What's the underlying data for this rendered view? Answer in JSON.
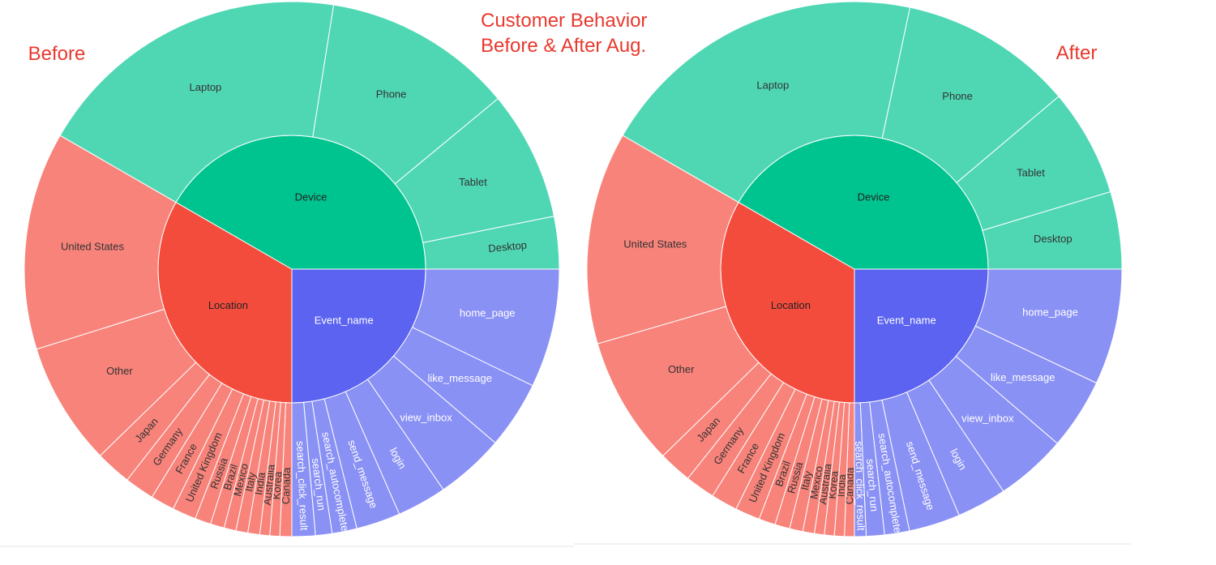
{
  "figure": {
    "title_line1": "Customer Behavior",
    "title_line2": "Before & After Aug."
  },
  "colors": {
    "Event_name": "#5b63f0",
    "Event_name_outer": "#8a91f5",
    "Device": "#00c48f",
    "Device_outer": "#4fd7b4",
    "Location": "#f44c3c",
    "Location_outer": "#f8837a",
    "inner_label": "#ffffff",
    "outer_label_event": "#ffffff",
    "outer_label_other": "#333333",
    "title": "#e8392e"
  },
  "chart_data": [
    {
      "type": "sunburst",
      "title": "Before",
      "groups": [
        {
          "name": "Event_name",
          "value": 0.25,
          "children": [
            {
              "name": "home_page",
              "value": 0.0717
            },
            {
              "name": "like_message",
              "value": 0.0408
            },
            {
              "name": "view_inbox",
              "value": 0.0417
            },
            {
              "name": "login",
              "value": 0.03
            },
            {
              "name": "send_message",
              "value": 0.0267
            },
            {
              "name": "search_autocomplete",
              "value": 0.015
            },
            {
              "name": "search_run",
              "value": 0.01
            },
            {
              "name": "search_click_result",
              "value": 0.0141
            }
          ]
        },
        {
          "name": "Location",
          "value": 0.3333,
          "children": [
            {
              "name": "Canada",
              "value": 0.0072
            },
            {
              "name": "Korea",
              "value": 0.006
            },
            {
              "name": "Australia",
              "value": 0.006
            },
            {
              "name": "India",
              "value": 0.0072
            },
            {
              "name": "Italy",
              "value": 0.0072
            },
            {
              "name": "Mexico",
              "value": 0.0072
            },
            {
              "name": "Brazil",
              "value": 0.0084
            },
            {
              "name": "Russia",
              "value": 0.0096
            },
            {
              "name": "United Kingdom",
              "value": 0.0144
            },
            {
              "name": "France",
              "value": 0.0144
            },
            {
              "name": "Germany",
              "value": 0.018
            },
            {
              "name": "Japan",
              "value": 0.0216
            },
            {
              "name": "Other",
              "value": 0.0745
            },
            {
              "name": "United States",
              "value": 0.1317
            }
          ]
        },
        {
          "name": "Device",
          "value": 0.4167,
          "children": [
            {
              "name": "Laptop",
              "value": 0.1917
            },
            {
              "name": "Phone",
              "value": 0.115
            },
            {
              "name": "Tablet",
              "value": 0.0783
            },
            {
              "name": "Desktop",
              "value": 0.0317
            }
          ]
        }
      ]
    },
    {
      "type": "sunburst",
      "title": "After",
      "groups": [
        {
          "name": "Event_name",
          "value": 0.25,
          "children": [
            {
              "name": "home_page",
              "value": 0.07
            },
            {
              "name": "like_message",
              "value": 0.043
            },
            {
              "name": "view_inbox",
              "value": 0.043
            },
            {
              "name": "login",
              "value": 0.03
            },
            {
              "name": "send_message",
              "value": 0.031
            },
            {
              "name": "search_autocomplete",
              "value": 0.015
            },
            {
              "name": "search_run",
              "value": 0.011
            },
            {
              "name": "search_click_result",
              "value": 0.007
            }
          ]
        },
        {
          "name": "Location",
          "value": 0.3333,
          "children": [
            {
              "name": "Canada",
              "value": 0.006
            },
            {
              "name": "India",
              "value": 0.006
            },
            {
              "name": "Korea",
              "value": 0.006
            },
            {
              "name": "Australia",
              "value": 0.006
            },
            {
              "name": "Mexico",
              "value": 0.007
            },
            {
              "name": "Italy",
              "value": 0.008
            },
            {
              "name": "Russia",
              "value": 0.009
            },
            {
              "name": "Brazil",
              "value": 0.01
            },
            {
              "name": "United Kingdom",
              "value": 0.015
            },
            {
              "name": "France",
              "value": 0.016
            },
            {
              "name": "Germany",
              "value": 0.018
            },
            {
              "name": "Japan",
              "value": 0.02
            },
            {
              "name": "Other",
              "value": 0.078
            },
            {
              "name": "United States",
              "value": 0.1283
            }
          ]
        },
        {
          "name": "Device",
          "value": 0.4167,
          "children": [
            {
              "name": "Laptop",
              "value": 0.2
            },
            {
              "name": "Phone",
              "value": 0.105
            },
            {
              "name": "Tablet",
              "value": 0.065
            },
            {
              "name": "Desktop",
              "value": 0.0467
            }
          ]
        }
      ]
    }
  ]
}
